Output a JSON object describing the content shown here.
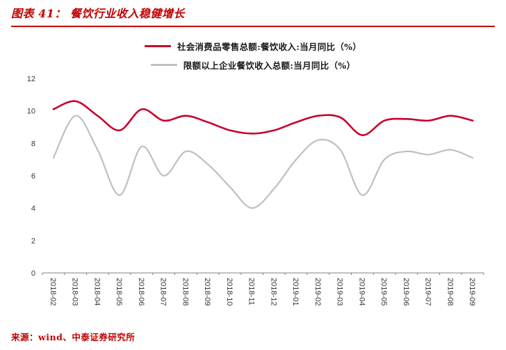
{
  "header": {
    "title": "图表 41： 餐饮行业收入稳健增长"
  },
  "source_note": "来源：wind、中泰证券研究所",
  "theme": {
    "accent_red": "#C00000",
    "axis_color": "#808080",
    "tick_label_color": "#363636"
  },
  "chart_data": {
    "type": "line",
    "title": "",
    "xlabel": "",
    "ylabel": "",
    "ylim": [
      0,
      12
    ],
    "yticks": [
      0,
      2,
      4,
      6,
      8,
      10,
      12
    ],
    "grid": false,
    "smooth": true,
    "legend_position": "top",
    "categories": [
      "2018-02",
      "2018-03",
      "2018-04",
      "2018-05",
      "2018-06",
      "2018-07",
      "2018-08",
      "2018-09",
      "2018-10",
      "2018-11",
      "2018-12",
      "2019-01",
      "2019-02",
      "2019-03",
      "2019-04",
      "2019-05",
      "2019-06",
      "2019-07",
      "2019-08",
      "2019-09"
    ],
    "series": [
      {
        "name": "社会消费品零售总额:餐饮收入:当月同比（%）",
        "color": "#C9002B",
        "width": 2.6,
        "values": [
          10.1,
          10.6,
          9.7,
          8.8,
          10.1,
          9.4,
          9.7,
          9.3,
          8.8,
          8.6,
          8.8,
          9.3,
          9.7,
          9.6,
          8.5,
          9.4,
          9.5,
          9.4,
          9.7,
          9.4
        ]
      },
      {
        "name": "限额以上企业餐饮收入总额:当月同比（%）",
        "color": "#BFBFBF",
        "width": 2.2,
        "values": [
          7.1,
          9.7,
          7.6,
          4.8,
          7.8,
          6.0,
          7.5,
          6.7,
          5.3,
          4.0,
          5.2,
          7.0,
          8.2,
          7.6,
          4.8,
          7.0,
          7.5,
          7.3,
          7.6,
          7.1
        ]
      }
    ]
  }
}
